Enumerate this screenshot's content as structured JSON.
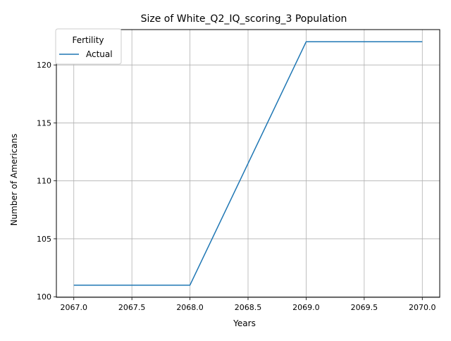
{
  "chart_data": {
    "type": "line",
    "title": "Size of White_Q2_IQ_scoring_3 Population",
    "xlabel": "Years",
    "ylabel": "Number of Americans",
    "xlim": [
      2066.85,
      2070.15
    ],
    "ylim": [
      99.95,
      123.05
    ],
    "x_ticks": [
      "2067.0",
      "2067.5",
      "2068.0",
      "2068.5",
      "2069.0",
      "2069.5",
      "2070.0"
    ],
    "y_ticks": [
      "100",
      "105",
      "110",
      "115",
      "120"
    ],
    "grid": true,
    "legend": {
      "title": "Fertility",
      "position": "top-left"
    },
    "series": [
      {
        "name": "Actual",
        "color": "#1f77b4",
        "x": [
          2067,
          2068,
          2069,
          2070
        ],
        "y": [
          101,
          101,
          122,
          122
        ]
      }
    ]
  }
}
